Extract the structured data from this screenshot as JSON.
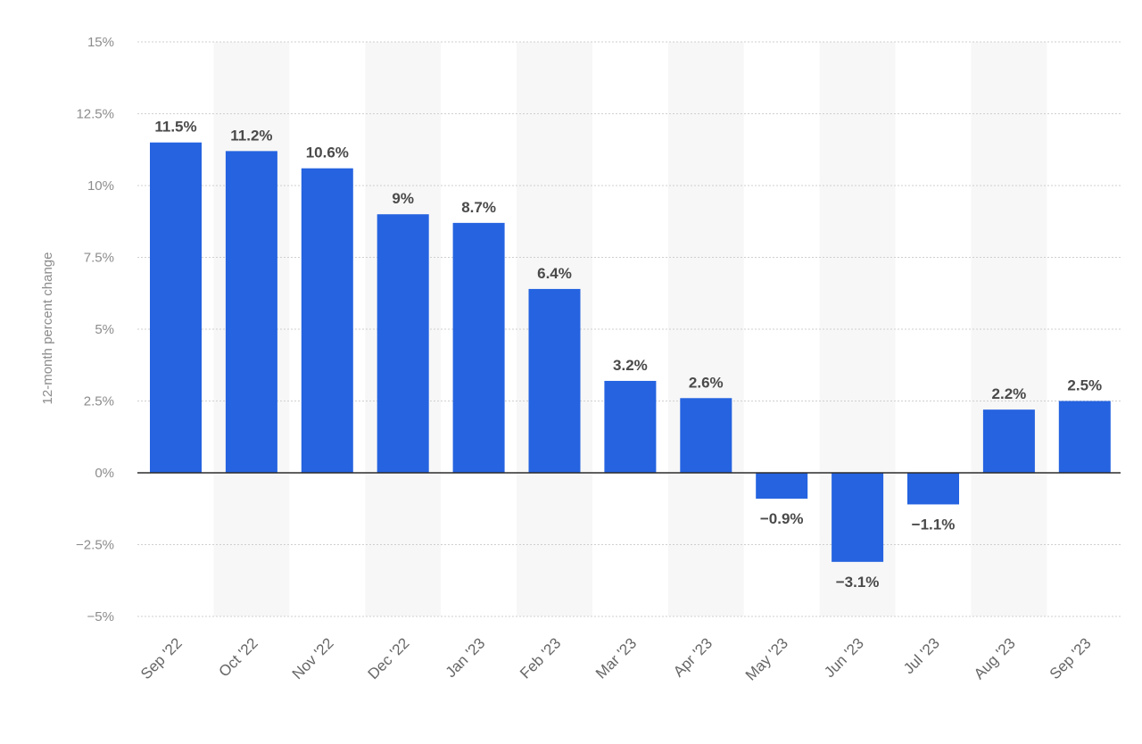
{
  "chart_data": {
    "type": "bar",
    "title": "",
    "xlabel": "",
    "ylabel": "12-month percent change",
    "categories": [
      "Sep '22",
      "Oct '22",
      "Nov '22",
      "Dec '22",
      "Jan '23",
      "Feb '23",
      "Mar '23",
      "Apr '23",
      "May '23",
      "Jun '23",
      "Jul '23",
      "Aug '23",
      "Sep '23"
    ],
    "values": [
      11.5,
      11.2,
      10.6,
      9,
      8.7,
      6.4,
      3.2,
      2.6,
      -0.9,
      -3.1,
      -1.1,
      2.2,
      2.5
    ],
    "value_labels": [
      "11.5%",
      "11.2%",
      "10.6%",
      "9%",
      "8.7%",
      "6.4%",
      "3.2%",
      "2.6%",
      "−0.9%",
      "−3.1%",
      "−1.1%",
      "2.2%",
      "2.5%"
    ],
    "ylim": [
      -5,
      15
    ],
    "yticks": [
      15,
      12.5,
      10,
      7.5,
      5,
      2.5,
      0,
      -2.5,
      -5
    ],
    "ytick_labels": [
      "15%",
      "12.5%",
      "10%",
      "7.5%",
      "5%",
      "2.5%",
      "0%",
      "−2.5%",
      "−5%"
    ],
    "grid": true,
    "legend": "none",
    "bar_color": "#2563e0",
    "band_color": "#f7f7f7",
    "zero_line_color": "#2b2b2b",
    "grid_color": "#cfcfcf"
  }
}
